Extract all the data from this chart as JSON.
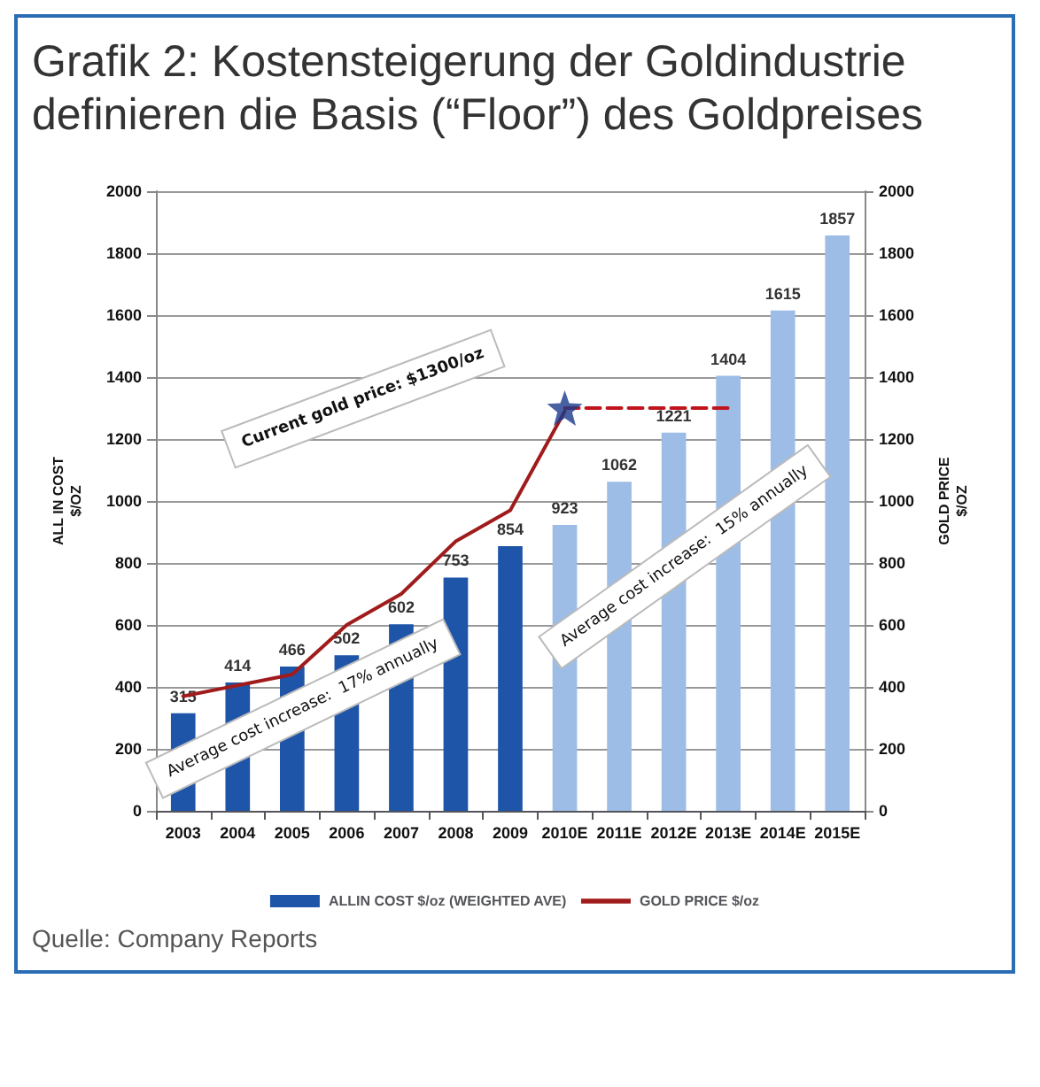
{
  "chart_data": {
    "type": "bar",
    "title": "Grafik 2: Kostensteigerung der Goldindustrie definieren die Basis (“Floor”) des Goldpreises",
    "ylabel": "ALL IN COST\n$/OZ",
    "y2label": "GOLD PRICE\n$/OZ",
    "categories": [
      "2003",
      "2004",
      "2005",
      "2006",
      "2007",
      "2008",
      "2009",
      "2010E",
      "2011E",
      "2012E",
      "2013E",
      "2014E",
      "2015E"
    ],
    "series": [
      {
        "name": "ALLIN COST $/oz (WEIGHTED AVE)",
        "color": "#1f55a8",
        "colors": [
          "#1f55a8",
          "#1f55a8",
          "#1f55a8",
          "#1f55a8",
          "#1f55a8",
          "#1f55a8",
          "#1f55a8",
          "#9dbde6",
          "#9dbde6",
          "#9dbde6",
          "#9dbde6",
          "#9dbde6",
          "#9dbde6"
        ],
        "values": [
          315,
          414,
          466,
          502,
          602,
          753,
          854,
          923,
          1062,
          1221,
          1404,
          1615,
          1857
        ],
        "value_labels": [
          "315",
          "414",
          "466",
          "502",
          "602",
          "753",
          "854",
          "923",
          "1062",
          "1221",
          "1404",
          "1615",
          "1857"
        ]
      },
      {
        "name": "GOLD PRICE $/oz",
        "type": "line",
        "color": "#a01c1c",
        "line_style": "solid",
        "marker": "none",
        "values": [
          370,
          405,
          440,
          600,
          700,
          870,
          970,
          1290,
          null,
          null,
          null,
          null,
          null
        ]
      },
      {
        "type": "line",
        "color": "#c0141c",
        "line_style": "dashed",
        "marker": "none",
        "values": [
          null,
          null,
          null,
          null,
          null,
          null,
          null,
          1300,
          1300,
          1300,
          1300,
          null,
          null
        ]
      },
      {
        "type": "scatter",
        "color": "#1a3a8c",
        "marker": "star",
        "values": [
          null,
          null,
          null,
          null,
          null,
          null,
          null,
          1300,
          null,
          null,
          null,
          null,
          null
        ]
      }
    ],
    "ylim": [
      0,
      2000
    ],
    "yticks": [
      0,
      200,
      400,
      600,
      800,
      1000,
      1200,
      1400,
      1600,
      1800,
      2000
    ],
    "y2lim": [
      0,
      2000
    ],
    "y2ticks": [
      0,
      200,
      400,
      600,
      800,
      1000,
      1200,
      1400,
      1600,
      1800,
      2000
    ],
    "grid": "y",
    "legend": "bottom",
    "annotations": [
      "Current gold price: $1300/oz",
      "Average cost increase:  17% annually",
      "Average cost increase:  15% annually",
      "Quelle: Company Reports"
    ]
  }
}
